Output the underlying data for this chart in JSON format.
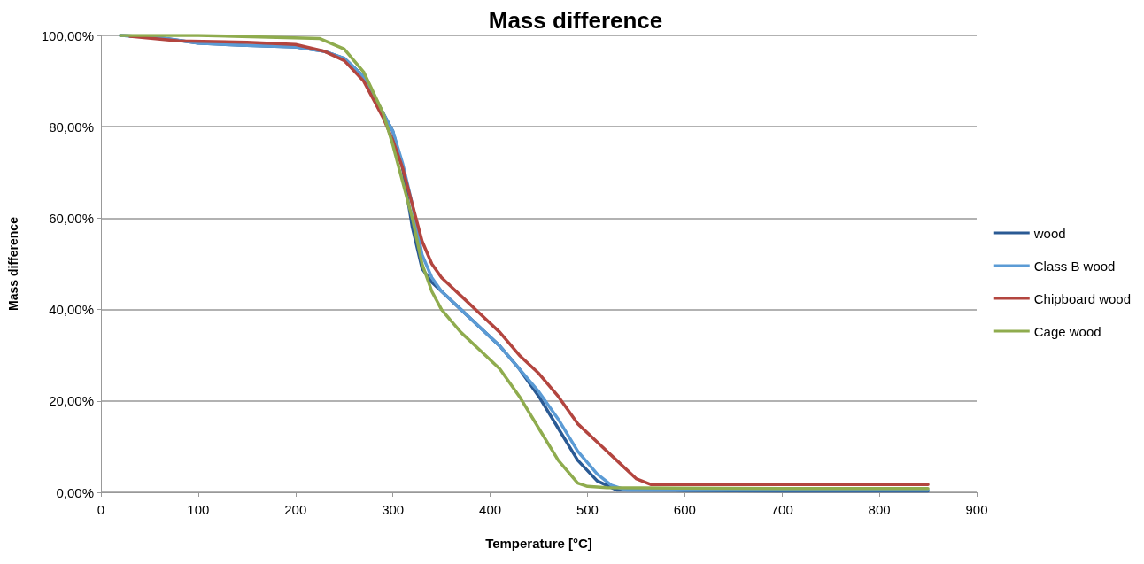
{
  "chart_data": {
    "type": "line",
    "title": "Mass difference",
    "xlabel": "Temperature [°C]",
    "ylabel": "Mass difference",
    "xlim": [
      0,
      900
    ],
    "xticks": [
      0,
      100,
      200,
      300,
      400,
      500,
      600,
      700,
      800,
      900
    ],
    "ylim": [
      0,
      100
    ],
    "yticks": [
      {
        "value": 0,
        "label": "0,00%"
      },
      {
        "value": 20,
        "label": "20,00%"
      },
      {
        "value": 40,
        "label": "40,00%"
      },
      {
        "value": 60,
        "label": "60,00%"
      },
      {
        "value": 80,
        "label": "80,00%"
      },
      {
        "value": 100,
        "label": "100,00%"
      }
    ],
    "grid": "y",
    "legend": "right",
    "marker": "none",
    "line_style": "solid",
    "series": [
      {
        "name": "wood",
        "color": "#2a5a94",
        "x": [
          20,
          60,
          100,
          150,
          200,
          230,
          250,
          270,
          290,
          300,
          310,
          320,
          330,
          340,
          350,
          370,
          390,
          410,
          430,
          450,
          470,
          490,
          510,
          530,
          600,
          700,
          850
        ],
        "values": [
          100,
          99.5,
          98.3,
          97.8,
          97.5,
          96.5,
          95,
          91,
          83,
          79,
          71,
          58,
          49,
          46,
          44,
          40,
          36,
          32,
          27,
          21,
          14,
          7,
          2.5,
          0.5,
          0.4,
          0.3,
          0.3
        ]
      },
      {
        "name": "Class B wood",
        "color": "#5b9bd5",
        "x": [
          20,
          60,
          100,
          150,
          200,
          230,
          250,
          270,
          290,
          300,
          310,
          320,
          330,
          340,
          350,
          370,
          390,
          410,
          430,
          450,
          470,
          490,
          510,
          525,
          540,
          700,
          850
        ],
        "values": [
          100,
          99.5,
          98.3,
          97.8,
          97.5,
          96.5,
          95,
          91,
          83,
          79,
          72,
          63,
          52,
          47,
          44,
          40,
          36,
          32,
          27,
          22,
          16,
          9,
          4,
          1.5,
          0.5,
          0.5,
          0.5
        ]
      },
      {
        "name": "Chipboard wood",
        "color": "#b3453f",
        "x": [
          30,
          80,
          150,
          200,
          230,
          250,
          270,
          290,
          300,
          310,
          320,
          330,
          340,
          350,
          370,
          390,
          410,
          430,
          450,
          470,
          490,
          510,
          530,
          550,
          565,
          700,
          850
        ],
        "values": [
          99.8,
          98.8,
          98.5,
          98,
          96.5,
          94.5,
          90,
          82,
          77,
          71,
          63,
          55,
          50,
          47,
          43,
          39,
          35,
          30,
          26,
          21,
          15,
          11,
          7,
          3,
          1.7,
          1.7,
          1.7
        ]
      },
      {
        "name": "Cage wood",
        "color": "#8fac4e",
        "x": [
          20,
          100,
          225,
          250,
          270,
          290,
          300,
          310,
          320,
          330,
          340,
          350,
          370,
          390,
          410,
          430,
          450,
          470,
          490,
          500,
          520,
          700,
          850
        ],
        "values": [
          100,
          100,
          99.3,
          97,
          92,
          83,
          76,
          68,
          60,
          50,
          44,
          40,
          35,
          31,
          27,
          21,
          14,
          7,
          2,
          1.3,
          1,
          0.8,
          0.8
        ]
      }
    ]
  }
}
